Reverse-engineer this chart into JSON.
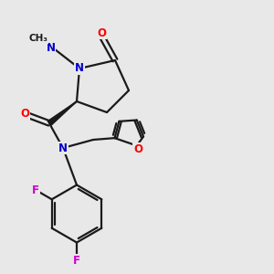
{
  "background_color": "#e8e8e8",
  "bond_color": "#1a1a1a",
  "bond_width": 1.6,
  "atom_colors": {
    "O": "#ff0000",
    "N": "#0000cc",
    "F": "#cc00cc",
    "C": "#1a1a1a"
  },
  "font_size_atom": 8.5,
  "font_size_methyl": 7.5
}
